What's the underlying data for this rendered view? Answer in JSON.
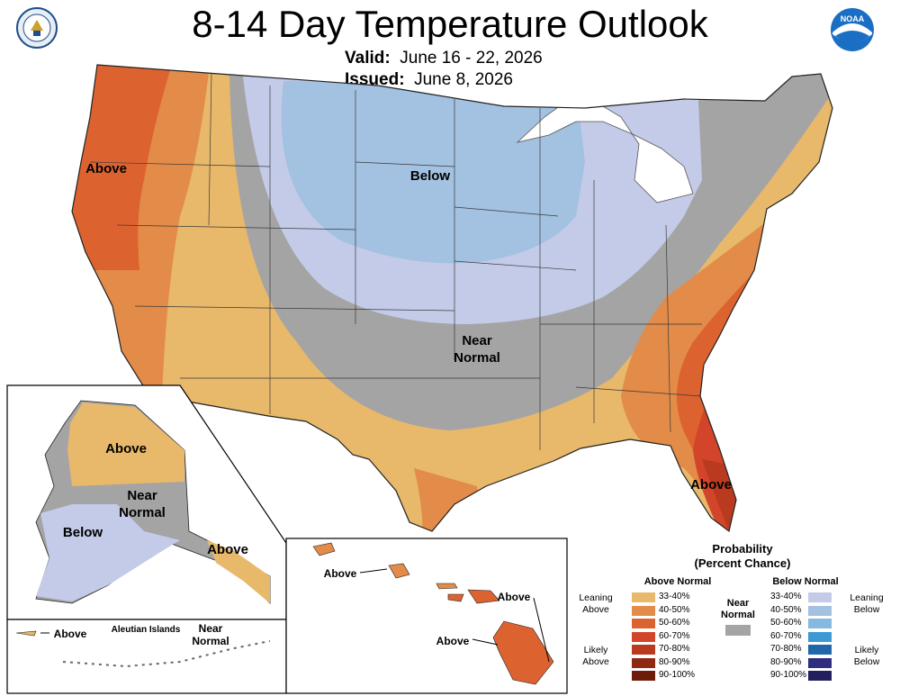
{
  "header": {
    "title": "8-14 Day Temperature Outlook",
    "valid_label": "Valid:",
    "valid_value": "June 16 - 22, 2026",
    "issued_label": "Issued:",
    "issued_value": "June 8, 2026"
  },
  "map": {
    "conus_labels": {
      "above_west": "Above",
      "below_north": "Below",
      "near_normal_1": "Near",
      "near_normal_2": "Normal",
      "above_southeast": "Above"
    },
    "alaska_labels": {
      "above": "Above",
      "near_1": "Near",
      "near_2": "Normal",
      "below": "Below",
      "above_panhandle": "Above"
    },
    "aleutian_labels": {
      "above": "Above",
      "title": "Aleutian Islands",
      "near_1": "Near",
      "near_2": "Normal"
    },
    "hawaii_labels": {
      "above_1": "Above",
      "above_2": "Above",
      "above_3": "Above"
    }
  },
  "legend": {
    "title_1": "Probability",
    "title_2": "(Percent Chance)",
    "above_header": "Above Normal",
    "below_header": "Below Normal",
    "near_label_1": "Near",
    "near_label_2": "Normal",
    "leaning_above": [
      "Leaning",
      "Above"
    ],
    "likely_above": [
      "Likely",
      "Above"
    ],
    "leaning_below": [
      "Leaning",
      "Below"
    ],
    "likely_below": [
      "Likely",
      "Below"
    ],
    "ranges": [
      "33-40%",
      "40-50%",
      "50-60%",
      "60-70%",
      "70-80%",
      "80-90%",
      "90-100%"
    ],
    "above_colors": [
      "#e8b86b",
      "#e38b48",
      "#dc6330",
      "#d3452a",
      "#b93a1f",
      "#8f2a12",
      "#6e1c0a"
    ],
    "below_colors": [
      "#c4cbe8",
      "#a3c1e0",
      "#86b9e0",
      "#3d99d4",
      "#1f67a8",
      "#2f2d7e",
      "#231e5e"
    ],
    "near_color": "#a4a4a4"
  }
}
